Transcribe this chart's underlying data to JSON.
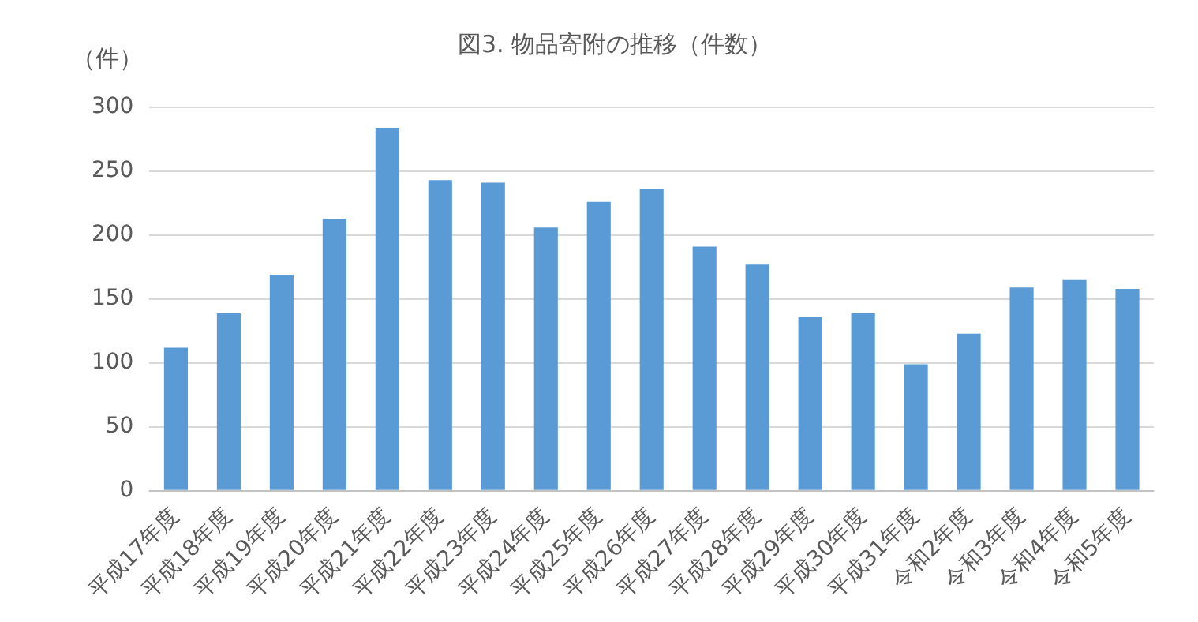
{
  "chart_data": {
    "type": "bar",
    "title": "図3. 物品寄附の推移（件数）",
    "ylabel": "（件）",
    "categories": [
      "平成17年度",
      "平成18年度",
      "平成19年度",
      "平成20年度",
      "平成21年度",
      "平成22年度",
      "平成23年度",
      "平成24年度",
      "平成25年度",
      "平成26年度",
      "平成27年度",
      "平成28年度",
      "平成29年度",
      "平成30年度",
      "平成31年度",
      "令和2年度",
      "令和3年度",
      "令和4年度",
      "令和5年度"
    ],
    "values": [
      112,
      139,
      169,
      213,
      284,
      243,
      241,
      206,
      226,
      236,
      191,
      177,
      136,
      139,
      99,
      123,
      159,
      165,
      158
    ],
    "color": "#5b9bd5",
    "ylim": [
      0,
      300
    ],
    "yticks": [
      0,
      50,
      100,
      150,
      200,
      250,
      300
    ],
    "grid": "y",
    "legend": false
  }
}
